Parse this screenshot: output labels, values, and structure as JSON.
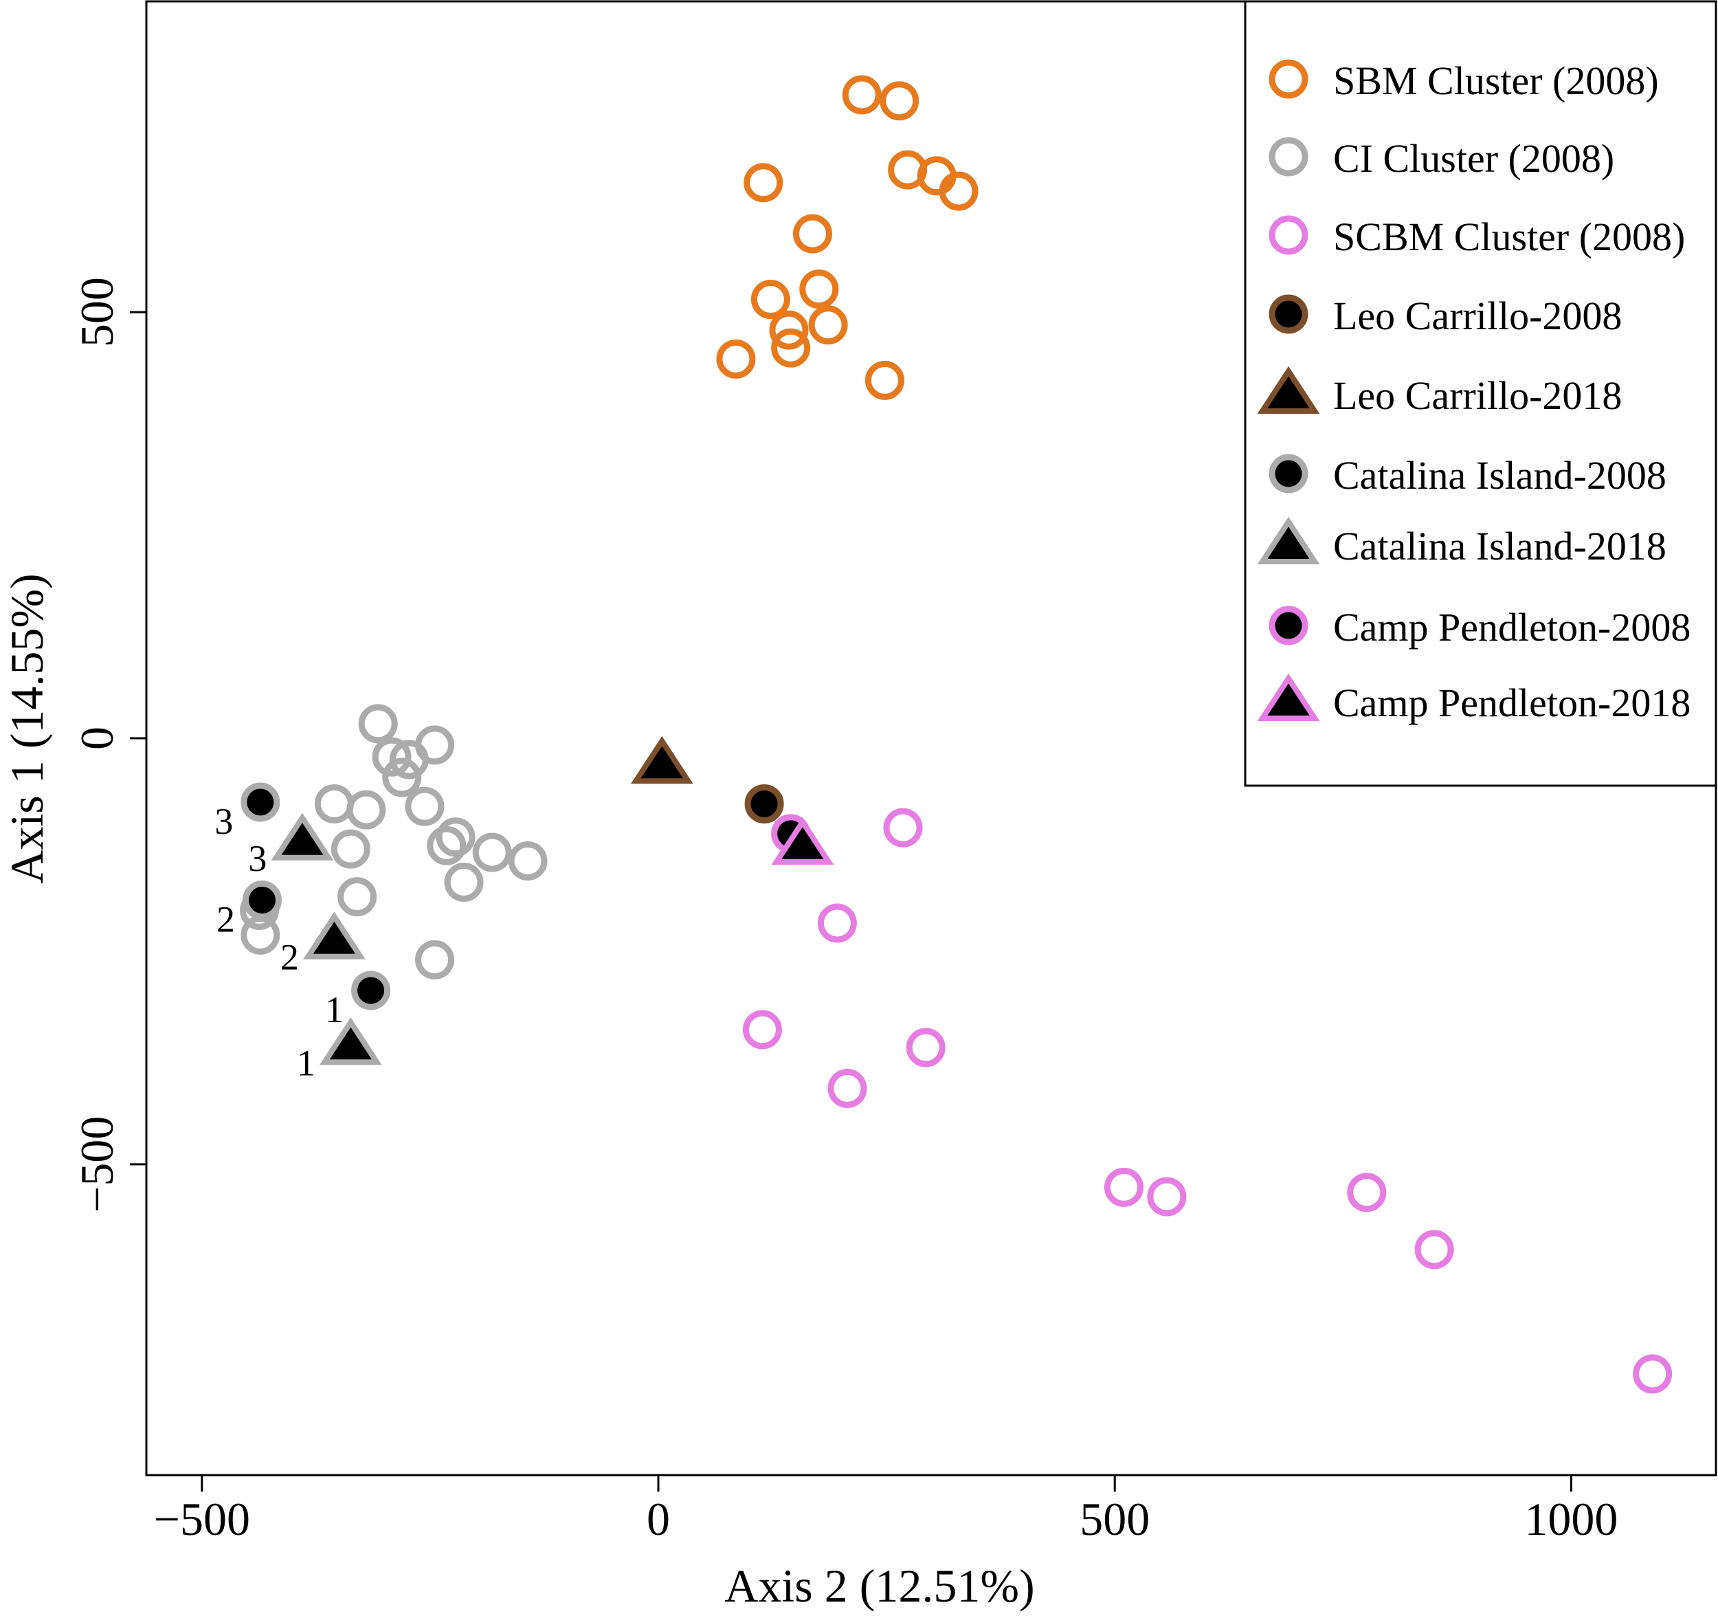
{
  "chart_data": {
    "type": "scatter",
    "xlabel": "Axis 2 (12.51%)",
    "ylabel": "Axis 1 (14.55%)",
    "xlim": [
      -560,
      1140
    ],
    "ylim": [
      -865,
      865
    ],
    "x_ticks": [
      {
        "value": -500,
        "label": "−500"
      },
      {
        "value": 0,
        "label": "0"
      },
      {
        "value": 500,
        "label": "500"
      },
      {
        "value": 1000,
        "label": "1000"
      }
    ],
    "y_ticks": [
      {
        "value": -500,
        "label": "−500"
      },
      {
        "value": 0,
        "label": "0"
      },
      {
        "value": 500,
        "label": "500"
      }
    ],
    "colors": {
      "sbm": "#E87A1E",
      "ci": "#ABABAB",
      "scbm": "#E67DE3",
      "leo": "#7B4F2B",
      "fill": "#000000"
    },
    "series": [
      {
        "name": "SBM Cluster (2008)",
        "marker": "open-circle",
        "color": "#E87A1E",
        "points": [
          {
            "x": 223,
            "y": 755
          },
          {
            "x": 264,
            "y": 748
          },
          {
            "x": 273,
            "y": 667
          },
          {
            "x": 305,
            "y": 660
          },
          {
            "x": 329,
            "y": 642
          },
          {
            "x": 115,
            "y": 652
          },
          {
            "x": 169,
            "y": 592
          },
          {
            "x": 176,
            "y": 527
          },
          {
            "x": 123,
            "y": 515
          },
          {
            "x": 186,
            "y": 485
          },
          {
            "x": 143,
            "y": 479
          },
          {
            "x": 145,
            "y": 458
          },
          {
            "x": 85,
            "y": 445
          },
          {
            "x": 248,
            "y": 420
          }
        ]
      },
      {
        "name": "CI Cluster (2008)",
        "marker": "open-circle",
        "color": "#ABABAB",
        "points": [
          {
            "x": -307,
            "y": 17
          },
          {
            "x": -245,
            "y": -8
          },
          {
            "x": -292,
            "y": -22
          },
          {
            "x": -273,
            "y": -25
          },
          {
            "x": -281,
            "y": -46
          },
          {
            "x": -355,
            "y": -77
          },
          {
            "x": -320,
            "y": -84
          },
          {
            "x": -256,
            "y": -80
          },
          {
            "x": -222,
            "y": -116
          },
          {
            "x": -232,
            "y": -126
          },
          {
            "x": -337,
            "y": -130
          },
          {
            "x": -182,
            "y": -134
          },
          {
            "x": -143,
            "y": -144
          },
          {
            "x": -213,
            "y": -169
          },
          {
            "x": -330,
            "y": -186
          },
          {
            "x": -437,
            "y": -202
          },
          {
            "x": -436,
            "y": -231
          },
          {
            "x": -245,
            "y": -260
          }
        ]
      },
      {
        "name": "SCBM Cluster (2008)",
        "marker": "open-circle",
        "color": "#E67DE3",
        "points": [
          {
            "x": 268,
            "y": -105
          },
          {
            "x": 196,
            "y": -217
          },
          {
            "x": 114,
            "y": -342
          },
          {
            "x": 293,
            "y": -363
          },
          {
            "x": 207,
            "y": -411
          },
          {
            "x": 510,
            "y": -527
          },
          {
            "x": 557,
            "y": -538
          },
          {
            "x": 776,
            "y": -533
          },
          {
            "x": 850,
            "y": -600
          },
          {
            "x": 1089,
            "y": -746
          }
        ]
      },
      {
        "name": "Leo Carrillo-2008",
        "marker": "filled-circle",
        "color": "#7B4F2B",
        "points": [
          {
            "x": 116,
            "y": -77
          }
        ]
      },
      {
        "name": "Leo Carrillo-2018",
        "marker": "filled-triangle",
        "color": "#7B4F2B",
        "points": [
          {
            "x": 4,
            "y": -30
          }
        ]
      },
      {
        "name": "Catalina Island-2008",
        "marker": "filled-circle",
        "color": "#ABABAB",
        "points": [
          {
            "x": -436,
            "y": -75,
            "label": "3"
          },
          {
            "x": -434,
            "y": -190,
            "label": "2"
          },
          {
            "x": -315,
            "y": -296,
            "label": "1"
          }
        ]
      },
      {
        "name": "Catalina Island-2018",
        "marker": "filled-triangle",
        "color": "#ABABAB",
        "points": [
          {
            "x": -390,
            "y": -120,
            "label": "3"
          },
          {
            "x": -355,
            "y": -236,
            "label": "2"
          },
          {
            "x": -337,
            "y": -360,
            "label": "1"
          }
        ]
      },
      {
        "name": "Camp Pendleton-2008",
        "marker": "filled-circle",
        "color": "#E67DE3",
        "points": [
          {
            "x": 145,
            "y": -112
          }
        ]
      },
      {
        "name": "Camp Pendleton-2018",
        "marker": "filled-triangle",
        "color": "#E67DE3",
        "points": [
          {
            "x": 158,
            "y": -125
          }
        ]
      }
    ],
    "legend": {
      "position": "top-right",
      "entries": [
        {
          "label": "SBM Cluster (2008)",
          "marker": "open-circle",
          "color": "#E87A1E"
        },
        {
          "label": "CI Cluster (2008)",
          "marker": "open-circle",
          "color": "#ABABAB"
        },
        {
          "label": "SCBM Cluster (2008)",
          "marker": "open-circle",
          "color": "#E67DE3"
        },
        {
          "label": "Leo Carrillo-2008",
          "marker": "filled-circle",
          "color": "#7B4F2B"
        },
        {
          "label": "Leo Carrillo-2018",
          "marker": "filled-triangle",
          "color": "#7B4F2B"
        },
        {
          "label": "Catalina Island-2008",
          "marker": "filled-circle",
          "color": "#ABABAB"
        },
        {
          "label": "Catalina Island-2018",
          "marker": "filled-triangle",
          "color": "#ABABAB"
        },
        {
          "label": "Camp Pendleton-2008",
          "marker": "filled-circle",
          "color": "#E67DE3"
        },
        {
          "label": "Camp Pendleton-2018",
          "marker": "filled-triangle",
          "color": "#E67DE3"
        }
      ]
    }
  }
}
